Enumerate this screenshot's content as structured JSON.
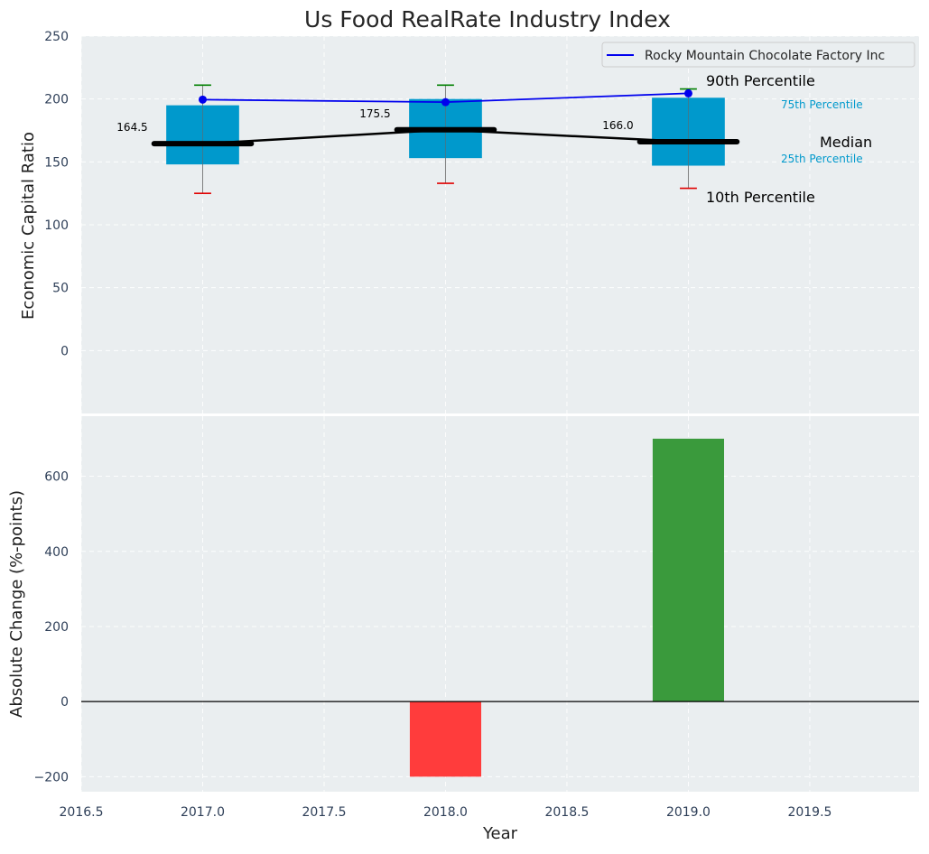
{
  "chart_data": [
    {
      "type": "box",
      "title": "Us Food RealRate Industry Index",
      "ylabel": "Economic Capital Ratio",
      "xlim": [
        2016.5,
        2019.95
      ],
      "ylim": [
        -50,
        250
      ],
      "x_ticks": [
        2016.5,
        2017.0,
        2017.5,
        2018.0,
        2018.5,
        2019.0,
        2019.5
      ],
      "x_tick_labels": [
        "2016.5",
        "2017.0",
        "2017.5",
        "2018.0",
        "2018.5",
        "2019.0",
        "2019.5"
      ],
      "y_ticks": [
        0,
        50,
        100,
        150,
        200,
        250
      ],
      "y_tick_labels": [
        "0",
        "50",
        "100",
        "150",
        "200",
        "250"
      ],
      "grid": true,
      "legend_position": "top-right",
      "boxes": [
        {
          "x": 2017.0,
          "p10": 125,
          "p25": 148,
          "median": 164.5,
          "p75": 195,
          "p90": 211,
          "median_label": "164.5"
        },
        {
          "x": 2018.0,
          "p10": 133,
          "p25": 153,
          "median": 175.5,
          "p75": 200,
          "p90": 211,
          "median_label": "175.5"
        },
        {
          "x": 2019.0,
          "p10": 129,
          "p25": 147,
          "median": 166.0,
          "p75": 201,
          "p90": 208,
          "median_label": "166.0"
        }
      ],
      "series": [
        {
          "name": "Rocky Mountain Chocolate Factory Inc",
          "color": "#0000ee",
          "x": [
            2017.0,
            2018.0,
            2019.0
          ],
          "y": [
            199.5,
            197.5,
            204.5
          ]
        }
      ],
      "median_line_color": "#000000",
      "box_color": "#0099cc",
      "annotations": {
        "p90": "90th Percentile",
        "p75": "75th Percentile",
        "median": "Median",
        "p25": "25th Percentile",
        "p10": "10th Percentile"
      }
    },
    {
      "type": "bar",
      "xlabel": "Year",
      "ylabel": "Absolute Change (%-points)",
      "ylim": [
        -240,
        760
      ],
      "y_ticks": [
        -200,
        0,
        200,
        400,
        600
      ],
      "y_tick_labels": [
        "−200",
        "0",
        "200",
        "400",
        "600"
      ],
      "x": [
        2018.0,
        2019.0
      ],
      "values": [
        -200,
        700
      ],
      "colors": [
        "#ff3c3c",
        "#3a9a3c"
      ]
    }
  ]
}
